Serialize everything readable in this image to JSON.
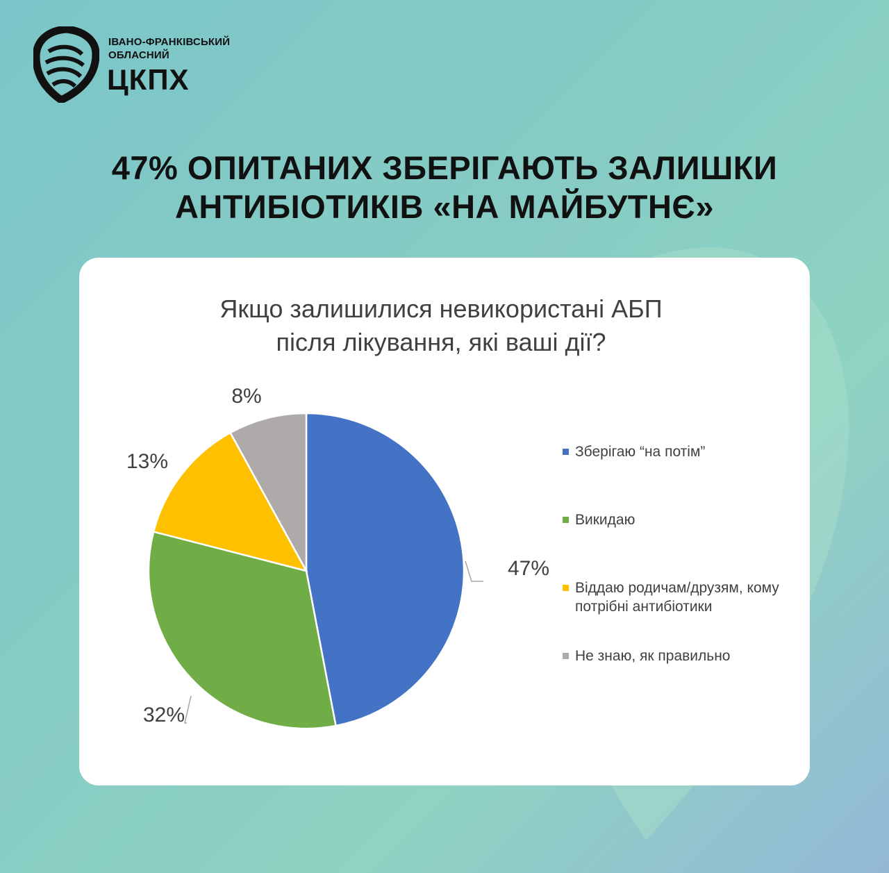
{
  "brand": {
    "line1": "ІВАНО-ФРАНКІВСЬКИЙ",
    "line2": "ОБЛАСНИЙ",
    "line3": "ЦКПХ",
    "logo_icon": "shield-stripes-icon"
  },
  "headline": {
    "line1": "47% ОПИТАНИХ ЗБЕРІГАЮТЬ ЗАЛИШКИ",
    "line2": "АНТИБІОТИКІВ «НА МАЙБУТНЄ»"
  },
  "chart_data": {
    "type": "pie",
    "title_lines": [
      "Якщо залишилися невикористані АБП",
      "після лікування, які ваші дії?"
    ],
    "categories": [
      "Зберігаю “на потім”",
      "Викидаю",
      "Віддаю родичам/друзям, кому потрібні антибіотики",
      "Не знаю, як правильно"
    ],
    "values": [
      47,
      32,
      13,
      8
    ],
    "data_labels": [
      "47%",
      "32%",
      "13%",
      "8%"
    ],
    "colors": [
      "#4472c4",
      "#70ad47",
      "#ffc000",
      "#aeaaaa"
    ],
    "legend_position": "right"
  },
  "colors": {
    "card": "#ffffff",
    "text_dark": "#111111",
    "chart_text": "#404040"
  }
}
